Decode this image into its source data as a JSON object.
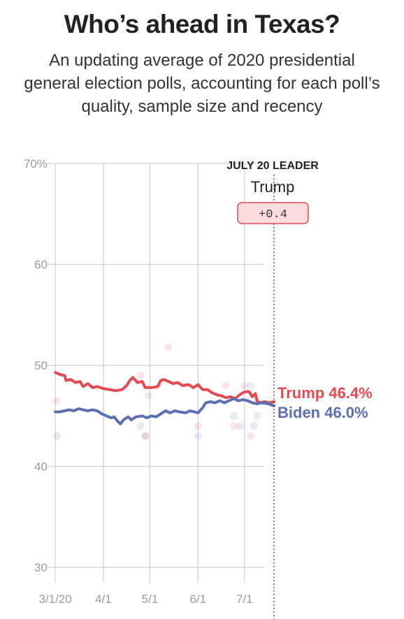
{
  "header": {
    "title": "Who’s ahead in Texas?",
    "subtitle": "An updating average of 2020 presidential general election polls, accounting for each poll’s quality, sample size and recency"
  },
  "leader_box": {
    "heading": "JULY 20 LEADER",
    "name": "Trump",
    "margin": "+0.4"
  },
  "chart_data": {
    "type": "line",
    "ylim": [
      30,
      70
    ],
    "y_ticks": [
      {
        "value": 70,
        "label": "70%"
      },
      {
        "value": 60,
        "label": "60"
      },
      {
        "value": 50,
        "label": "50"
      },
      {
        "value": 40,
        "label": "40"
      },
      {
        "value": 30,
        "label": "30"
      }
    ],
    "x_range": [
      "2020-02-25",
      "2020-07-20"
    ],
    "x_ticks": [
      {
        "date": "2020-03-01",
        "label": "3/1/20"
      },
      {
        "date": "2020-04-01",
        "label": "4/1"
      },
      {
        "date": "2020-05-01",
        "label": "5/1"
      },
      {
        "date": "2020-06-01",
        "label": "6/1"
      },
      {
        "date": "2020-07-01",
        "label": "7/1"
      }
    ],
    "marker_date": "2020-07-20",
    "series": [
      {
        "name": "Trump",
        "color": "#e84850",
        "end_label": "Trump 46.4%",
        "points": [
          [
            "2020-03-01",
            49.3
          ],
          [
            "2020-03-04",
            49.1
          ],
          [
            "2020-03-07",
            49.0
          ],
          [
            "2020-03-08",
            48.5
          ],
          [
            "2020-03-11",
            48.6
          ],
          [
            "2020-03-14",
            48.3
          ],
          [
            "2020-03-17",
            48.4
          ],
          [
            "2020-03-19",
            47.9
          ],
          [
            "2020-03-22",
            48.2
          ],
          [
            "2020-03-25",
            47.8
          ],
          [
            "2020-03-28",
            47.9
          ],
          [
            "2020-04-01",
            47.7
          ],
          [
            "2020-04-05",
            47.6
          ],
          [
            "2020-04-09",
            47.5
          ],
          [
            "2020-04-13",
            47.6
          ],
          [
            "2020-04-16",
            48.0
          ],
          [
            "2020-04-18",
            48.5
          ],
          [
            "2020-04-20",
            48.8
          ],
          [
            "2020-04-23",
            48.3
          ],
          [
            "2020-04-26",
            48.4
          ],
          [
            "2020-04-28",
            47.8
          ],
          [
            "2020-05-02",
            47.8
          ],
          [
            "2020-05-06",
            47.9
          ],
          [
            "2020-05-08",
            48.5
          ],
          [
            "2020-05-10",
            48.6
          ],
          [
            "2020-05-13",
            48.4
          ],
          [
            "2020-05-16",
            48.2
          ],
          [
            "2020-05-19",
            48.3
          ],
          [
            "2020-05-22",
            48.0
          ],
          [
            "2020-05-26",
            48.1
          ],
          [
            "2020-05-29",
            47.8
          ],
          [
            "2020-06-01",
            48.1
          ],
          [
            "2020-06-04",
            47.6
          ],
          [
            "2020-06-07",
            47.6
          ],
          [
            "2020-06-10",
            47.3
          ],
          [
            "2020-06-13",
            47.1
          ],
          [
            "2020-06-16",
            47.0
          ],
          [
            "2020-06-19",
            46.8
          ],
          [
            "2020-06-22",
            46.9
          ],
          [
            "2020-06-25",
            46.7
          ],
          [
            "2020-06-27",
            47.0
          ],
          [
            "2020-06-30",
            47.3
          ],
          [
            "2020-07-02",
            47.4
          ],
          [
            "2020-07-04",
            47.4
          ],
          [
            "2020-07-06",
            46.9
          ],
          [
            "2020-07-08",
            47.2
          ],
          [
            "2020-07-09",
            46.5
          ],
          [
            "2020-07-11",
            46.3
          ],
          [
            "2020-07-14",
            46.4
          ],
          [
            "2020-07-17",
            46.3
          ],
          [
            "2020-07-20",
            46.4
          ]
        ]
      },
      {
        "name": "Biden",
        "color": "#5b6fb2",
        "end_label": "Biden 46.0%",
        "points": [
          [
            "2020-03-01",
            45.4
          ],
          [
            "2020-03-04",
            45.4
          ],
          [
            "2020-03-07",
            45.5
          ],
          [
            "2020-03-10",
            45.6
          ],
          [
            "2020-03-13",
            45.5
          ],
          [
            "2020-03-16",
            45.7
          ],
          [
            "2020-03-19",
            45.6
          ],
          [
            "2020-03-22",
            45.5
          ],
          [
            "2020-03-25",
            45.6
          ],
          [
            "2020-03-28",
            45.5
          ],
          [
            "2020-03-31",
            45.2
          ],
          [
            "2020-04-03",
            45.0
          ],
          [
            "2020-04-06",
            44.8
          ],
          [
            "2020-04-08",
            44.9
          ],
          [
            "2020-04-10",
            44.5
          ],
          [
            "2020-04-12",
            44.2
          ],
          [
            "2020-04-14",
            44.6
          ],
          [
            "2020-04-17",
            44.9
          ],
          [
            "2020-04-19",
            44.6
          ],
          [
            "2020-04-22",
            44.9
          ],
          [
            "2020-04-26",
            45.0
          ],
          [
            "2020-04-29",
            44.8
          ],
          [
            "2020-05-02",
            45.0
          ],
          [
            "2020-05-05",
            44.9
          ],
          [
            "2020-05-08",
            45.2
          ],
          [
            "2020-05-11",
            45.5
          ],
          [
            "2020-05-14",
            45.3
          ],
          [
            "2020-05-17",
            45.5
          ],
          [
            "2020-05-20",
            45.4
          ],
          [
            "2020-05-24",
            45.3
          ],
          [
            "2020-05-27",
            45.5
          ],
          [
            "2020-06-01",
            45.3
          ],
          [
            "2020-06-04",
            45.8
          ],
          [
            "2020-06-06",
            46.3
          ],
          [
            "2020-06-09",
            46.4
          ],
          [
            "2020-06-12",
            46.3
          ],
          [
            "2020-06-15",
            46.5
          ],
          [
            "2020-06-18",
            46.3
          ],
          [
            "2020-06-21",
            46.5
          ],
          [
            "2020-06-24",
            46.7
          ],
          [
            "2020-06-27",
            46.5
          ],
          [
            "2020-06-30",
            46.6
          ],
          [
            "2020-07-03",
            46.5
          ],
          [
            "2020-07-06",
            46.3
          ],
          [
            "2020-07-09",
            46.2
          ],
          [
            "2020-07-12",
            46.3
          ],
          [
            "2020-07-16",
            46.2
          ],
          [
            "2020-07-20",
            46.0
          ]
        ]
      }
    ],
    "polls": [
      {
        "series": "Trump",
        "date": "2020-03-02",
        "value": 46.5
      },
      {
        "series": "Biden",
        "date": "2020-03-02",
        "value": 43.0
      },
      {
        "series": "Trump",
        "date": "2020-04-25",
        "value": 49.0
      },
      {
        "series": "Biden",
        "date": "2020-04-25",
        "value": 44.0
      },
      {
        "series": "Trump",
        "date": "2020-04-28",
        "value": 43.0
      },
      {
        "series": "Biden",
        "date": "2020-04-28",
        "value": 43.0
      },
      {
        "series": "Biden",
        "date": "2020-04-30",
        "value": 47.0
      },
      {
        "series": "Trump",
        "date": "2020-05-13",
        "value": 51.8
      },
      {
        "series": "Trump",
        "date": "2020-06-01",
        "value": 44.0
      },
      {
        "series": "Biden",
        "date": "2020-06-01",
        "value": 43.0
      },
      {
        "series": "Trump",
        "date": "2020-06-19",
        "value": 48.0
      },
      {
        "series": "Trump",
        "date": "2020-06-24",
        "value": 44.0
      },
      {
        "series": "Biden",
        "date": "2020-06-24",
        "value": 45.0
      },
      {
        "series": "Biden",
        "date": "2020-06-28",
        "value": 44.0
      },
      {
        "series": "Trump",
        "date": "2020-07-01",
        "value": 48.0
      },
      {
        "series": "Trump",
        "date": "2020-07-05",
        "value": 43.0
      },
      {
        "series": "Biden",
        "date": "2020-07-05",
        "value": 48.0
      },
      {
        "series": "Biden",
        "date": "2020-07-07",
        "value": 44.0
      },
      {
        "series": "Biden",
        "date": "2020-07-09",
        "value": 45.0
      }
    ]
  }
}
